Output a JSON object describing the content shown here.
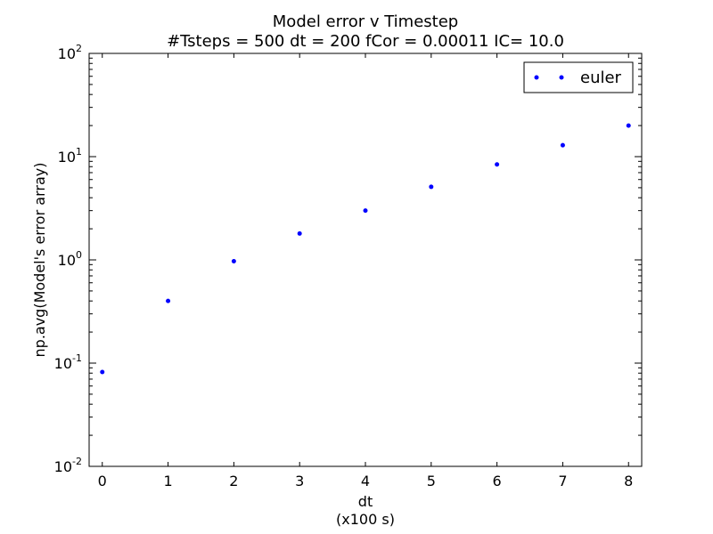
{
  "chart_data": {
    "type": "scatter",
    "title": "Model error v Timestep",
    "subtitle": "#Tsteps = 500 dt = 200 fCor = 0.00011 IC= 10.0",
    "xlabel": "dt",
    "xlabel_unit": "(x100 s)",
    "ylabel": "np.avg(Model's error array)",
    "xlim": [
      -0.2,
      8.2
    ],
    "ylim": [
      0.01,
      100
    ],
    "yscale": "log",
    "x_ticks": [
      "0",
      "1",
      "2",
      "3",
      "4",
      "5",
      "6",
      "7",
      "8"
    ],
    "y_ticks": [
      {
        "base": "10",
        "exp": "-2"
      },
      {
        "base": "10",
        "exp": "-1"
      },
      {
        "base": "10",
        "exp": "0"
      },
      {
        "base": "10",
        "exp": "1"
      },
      {
        "base": "10",
        "exp": "2"
      }
    ],
    "grid": false,
    "legend_position": "top-right",
    "series": [
      {
        "name": "euler",
        "color": "#0000ff",
        "x": [
          0,
          1,
          2,
          3,
          4,
          5,
          6,
          7,
          8
        ],
        "y": [
          0.082,
          0.4,
          0.97,
          1.8,
          3.0,
          5.1,
          8.4,
          12.9,
          20.0
        ]
      }
    ]
  }
}
